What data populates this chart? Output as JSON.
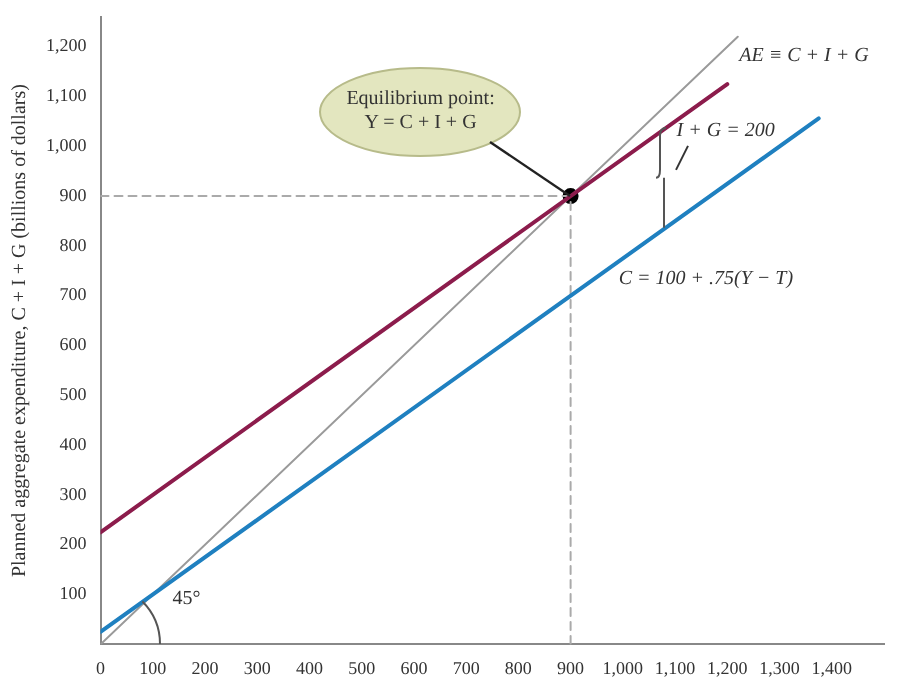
{
  "chart_data": {
    "type": "line",
    "ylabel": "Planned aggregate expenditure, C + I + G (billions of dollars)",
    "xlim": [
      0,
      1500
    ],
    "ylim": [
      0,
      1260
    ],
    "xticks": [
      0,
      100,
      200,
      300,
      400,
      500,
      600,
      700,
      800,
      900,
      {
        "value": 1000,
        "label": "1,000"
      },
      {
        "value": 1100,
        "label": "1,100"
      },
      {
        "value": 1200,
        "label": "1,200"
      },
      {
        "value": 1300,
        "label": "1,300"
      },
      {
        "value": 1400,
        "label": "1,400"
      }
    ],
    "yticks": [
      100,
      200,
      300,
      400,
      500,
      600,
      700,
      800,
      900,
      {
        "value": 1000,
        "label": "1,000"
      },
      {
        "value": 1100,
        "label": "1,100"
      },
      {
        "value": 1200,
        "label": "1,200"
      }
    ],
    "grid": false,
    "legend": false,
    "series": [
      {
        "name": "AE ≡ C + I + G",
        "color": "#8c1c4c",
        "x": [
          0,
          1200
        ],
        "values": [
          225,
          1125
        ]
      },
      {
        "name": "C = 100 + .75(Y − T)",
        "color": "#1f80c0",
        "x": [
          0,
          1375
        ],
        "values": [
          25,
          1056
        ]
      },
      {
        "color": "#9a9a9a",
        "x": [
          0,
          1220
        ],
        "values": [
          0,
          1220
        ]
      },
      {
        "color": "#aaaaaa",
        "line_style": "dashed",
        "x": [
          0,
          900,
          900
        ],
        "values": [
          900,
          900,
          0
        ]
      },
      {
        "type": "scatter",
        "marker": "circle",
        "color": "#000000",
        "x": [
          900
        ],
        "values": [
          900
        ]
      }
    ],
    "annotations": [
      {
        "text": "Equilibrium point: Y = C + I + G",
        "x": 900,
        "y": 900
      },
      {
        "text": "I + G = 200",
        "x": 1080,
        "y": 1035
      },
      "45°"
    ]
  }
}
